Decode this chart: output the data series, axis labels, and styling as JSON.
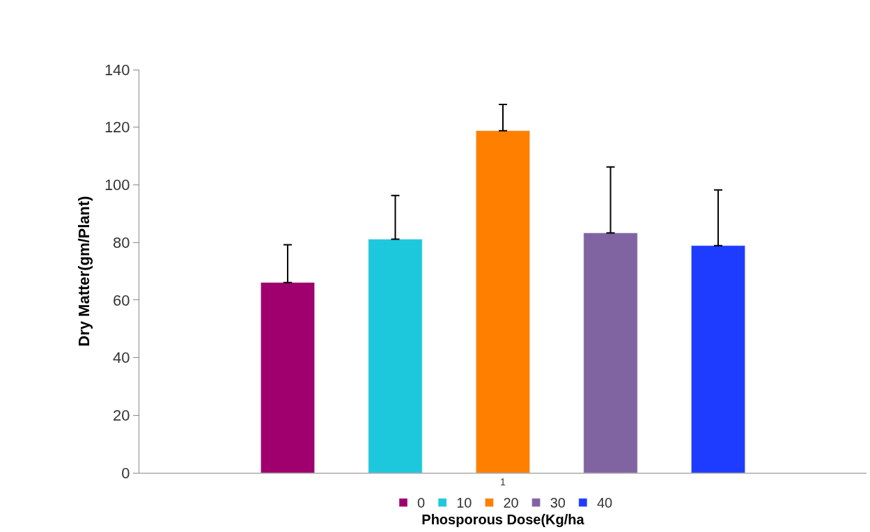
{
  "chart_data": {
    "type": "bar",
    "xlabel": "Phosporous Dose(Kg/ha",
    "ylabel": "Dry Matter(gm/Plant)",
    "categories": [
      "1"
    ],
    "series": [
      {
        "name": "0",
        "color": "#a0006e",
        "values": [
          66.1
        ],
        "errors": [
          [
            66.1,
            79.2
          ]
        ]
      },
      {
        "name": "10",
        "color": "#1ec8dc",
        "values": [
          81.1
        ],
        "errors": [
          [
            81.1,
            96.3
          ]
        ]
      },
      {
        "name": "20",
        "color": "#ff8000",
        "values": [
          118.8
        ],
        "errors": [
          [
            118.8,
            127.9
          ]
        ]
      },
      {
        "name": "30",
        "color": "#8064a2",
        "values": [
          83.3
        ],
        "errors": [
          [
            83.3,
            106.2
          ]
        ]
      },
      {
        "name": "40",
        "color": "#1e3cff",
        "values": [
          78.9
        ],
        "errors": [
          [
            78.9,
            98.2
          ]
        ]
      }
    ],
    "ylim": [
      0,
      140
    ],
    "yticks": [
      0,
      20,
      40,
      60,
      80,
      100,
      120,
      140
    ],
    "legend": "bottom"
  }
}
